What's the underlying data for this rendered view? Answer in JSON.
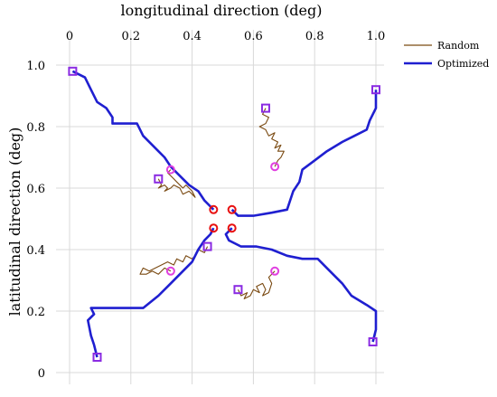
{
  "chart_data": {
    "type": "line",
    "xlabel": "longitudinal direction (deg)",
    "ylabel": "latitudinal direction (deg)",
    "xlim": [
      0,
      1.0
    ],
    "ylim": [
      0,
      1.0
    ],
    "x_ticks": [
      "0",
      "0.2",
      "0.4",
      "0.6",
      "0.8",
      "1.0"
    ],
    "y_ticks": [
      "0",
      "0.2",
      "0.4",
      "0.6",
      "0.8",
      "1.0"
    ],
    "grid": true,
    "x_axis_position": "top",
    "legend_position": "top-right",
    "colors": {
      "random": "#7a4a12",
      "optimized": "#1f1fd0",
      "start_marker": "#8a2be2",
      "target_random": "#e040e0",
      "target_optimized": "#e81010"
    },
    "series": [
      {
        "name": "Random",
        "kind": "random-walk",
        "paths": [
          {
            "from": [
              0.29,
              0.63
            ],
            "to": [
              0.33,
              0.66
            ],
            "points": [
              [
                0.29,
                0.63
              ],
              [
                0.3,
                0.61
              ],
              [
                0.29,
                0.6
              ],
              [
                0.31,
                0.61
              ],
              [
                0.32,
                0.6
              ],
              [
                0.31,
                0.59
              ],
              [
                0.33,
                0.6
              ],
              [
                0.34,
                0.61
              ],
              [
                0.36,
                0.6
              ],
              [
                0.37,
                0.58
              ],
              [
                0.39,
                0.59
              ],
              [
                0.41,
                0.57
              ],
              [
                0.4,
                0.59
              ],
              [
                0.38,
                0.61
              ],
              [
                0.37,
                0.6
              ],
              [
                0.35,
                0.62
              ],
              [
                0.34,
                0.63
              ],
              [
                0.33,
                0.64
              ],
              [
                0.32,
                0.65
              ],
              [
                0.33,
                0.66
              ]
            ]
          },
          {
            "from": [
              0.64,
              0.86
            ],
            "to": [
              0.67,
              0.67
            ],
            "points": [
              [
                0.64,
                0.86
              ],
              [
                0.63,
                0.84
              ],
              [
                0.65,
                0.83
              ],
              [
                0.64,
                0.81
              ],
              [
                0.62,
                0.8
              ],
              [
                0.64,
                0.79
              ],
              [
                0.65,
                0.77
              ],
              [
                0.67,
                0.78
              ],
              [
                0.66,
                0.76
              ],
              [
                0.68,
                0.75
              ],
              [
                0.67,
                0.73
              ],
              [
                0.69,
                0.74
              ],
              [
                0.68,
                0.72
              ],
              [
                0.7,
                0.72
              ],
              [
                0.69,
                0.7
              ],
              [
                0.68,
                0.69
              ],
              [
                0.67,
                0.67
              ]
            ]
          },
          {
            "from": [
              0.45,
              0.41
            ],
            "to": [
              0.33,
              0.33
            ],
            "points": [
              [
                0.45,
                0.41
              ],
              [
                0.44,
                0.39
              ],
              [
                0.42,
                0.4
              ],
              [
                0.41,
                0.38
              ],
              [
                0.4,
                0.37
              ],
              [
                0.38,
                0.38
              ],
              [
                0.37,
                0.36
              ],
              [
                0.35,
                0.37
              ],
              [
                0.34,
                0.35
              ],
              [
                0.32,
                0.36
              ],
              [
                0.3,
                0.35
              ],
              [
                0.28,
                0.34
              ],
              [
                0.26,
                0.33
              ],
              [
                0.24,
                0.34
              ],
              [
                0.23,
                0.32
              ],
              [
                0.25,
                0.32
              ],
              [
                0.27,
                0.33
              ],
              [
                0.29,
                0.32
              ],
              [
                0.31,
                0.34
              ],
              [
                0.33,
                0.33
              ]
            ]
          },
          {
            "from": [
              0.55,
              0.27
            ],
            "to": [
              0.67,
              0.33
            ],
            "points": [
              [
                0.55,
                0.27
              ],
              [
                0.56,
                0.25
              ],
              [
                0.58,
                0.26
              ],
              [
                0.57,
                0.24
              ],
              [
                0.59,
                0.25
              ],
              [
                0.6,
                0.27
              ],
              [
                0.62,
                0.26
              ],
              [
                0.61,
                0.28
              ],
              [
                0.63,
                0.29
              ],
              [
                0.64,
                0.27
              ],
              [
                0.63,
                0.25
              ],
              [
                0.65,
                0.26
              ],
              [
                0.66,
                0.29
              ],
              [
                0.65,
                0.31
              ],
              [
                0.67,
                0.33
              ]
            ]
          }
        ]
      },
      {
        "name": "Optimized",
        "kind": "optimized-path",
        "paths": [
          {
            "from": [
              0.01,
              0.98
            ],
            "to": [
              0.47,
              0.53
            ],
            "points": [
              [
                0.01,
                0.98
              ],
              [
                0.05,
                0.96
              ],
              [
                0.07,
                0.92
              ],
              [
                0.09,
                0.88
              ],
              [
                0.12,
                0.86
              ],
              [
                0.14,
                0.83
              ],
              [
                0.14,
                0.81
              ],
              [
                0.22,
                0.81
              ],
              [
                0.24,
                0.77
              ],
              [
                0.29,
                0.72
              ],
              [
                0.31,
                0.7
              ],
              [
                0.33,
                0.67
              ],
              [
                0.35,
                0.65
              ],
              [
                0.37,
                0.63
              ],
              [
                0.39,
                0.61
              ],
              [
                0.42,
                0.59
              ],
              [
                0.44,
                0.56
              ],
              [
                0.46,
                0.54
              ],
              [
                0.47,
                0.53
              ]
            ]
          },
          {
            "from": [
              1.0,
              0.92
            ],
            "to": [
              0.53,
              0.53
            ],
            "points": [
              [
                1.0,
                0.92
              ],
              [
                1.0,
                0.86
              ],
              [
                0.98,
                0.82
              ],
              [
                0.97,
                0.79
              ],
              [
                0.93,
                0.77
              ],
              [
                0.89,
                0.75
              ],
              [
                0.84,
                0.72
              ],
              [
                0.8,
                0.69
              ],
              [
                0.76,
                0.66
              ],
              [
                0.75,
                0.62
              ],
              [
                0.73,
                0.59
              ],
              [
                0.71,
                0.53
              ],
              [
                0.66,
                0.52
              ],
              [
                0.6,
                0.51
              ],
              [
                0.55,
                0.51
              ],
              [
                0.53,
                0.53
              ]
            ]
          },
          {
            "from": [
              0.09,
              0.05
            ],
            "to": [
              0.47,
              0.47
            ],
            "points": [
              [
                0.09,
                0.05
              ],
              [
                0.08,
                0.09
              ],
              [
                0.07,
                0.12
              ],
              [
                0.06,
                0.17
              ],
              [
                0.08,
                0.19
              ],
              [
                0.07,
                0.21
              ],
              [
                0.24,
                0.21
              ],
              [
                0.29,
                0.25
              ],
              [
                0.33,
                0.29
              ],
              [
                0.37,
                0.33
              ],
              [
                0.4,
                0.36
              ],
              [
                0.42,
                0.4
              ],
              [
                0.44,
                0.43
              ],
              [
                0.46,
                0.45
              ],
              [
                0.47,
                0.47
              ]
            ]
          },
          {
            "from": [
              0.99,
              0.1
            ],
            "to": [
              0.53,
              0.47
            ],
            "points": [
              [
                0.99,
                0.1
              ],
              [
                1.0,
                0.14
              ],
              [
                1.0,
                0.2
              ],
              [
                0.97,
                0.22
              ],
              [
                0.92,
                0.25
              ],
              [
                0.89,
                0.29
              ],
              [
                0.85,
                0.33
              ],
              [
                0.81,
                0.37
              ],
              [
                0.76,
                0.37
              ],
              [
                0.71,
                0.38
              ],
              [
                0.66,
                0.4
              ],
              [
                0.61,
                0.41
              ],
              [
                0.56,
                0.41
              ],
              [
                0.52,
                0.43
              ],
              [
                0.51,
                0.45
              ],
              [
                0.53,
                0.47
              ]
            ]
          }
        ]
      }
    ],
    "start_markers": [
      [
        0.01,
        0.98
      ],
      [
        1.0,
        0.92
      ],
      [
        0.64,
        0.86
      ],
      [
        0.29,
        0.63
      ],
      [
        0.45,
        0.41
      ],
      [
        0.55,
        0.27
      ],
      [
        0.09,
        0.05
      ],
      [
        0.99,
        0.1
      ]
    ],
    "random_targets": [
      [
        0.33,
        0.66
      ],
      [
        0.67,
        0.67
      ],
      [
        0.33,
        0.33
      ],
      [
        0.67,
        0.33
      ]
    ],
    "optimized_targets": [
      [
        0.47,
        0.53
      ],
      [
        0.53,
        0.53
      ],
      [
        0.47,
        0.47
      ],
      [
        0.53,
        0.47
      ]
    ]
  }
}
